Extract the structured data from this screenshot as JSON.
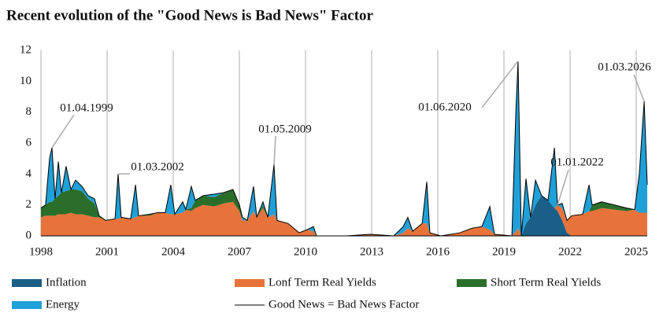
{
  "chart_data": {
    "type": "area",
    "title": "Recent evolution of the \"Good News is Bad News\" Factor",
    "x": [
      1998.0,
      1998.21,
      1998.39,
      1998.5,
      1998.64,
      1998.79,
      1998.93,
      1999.14,
      1999.36,
      1999.57,
      1999.86,
      2000.14,
      2000.43,
      2000.64,
      2000.93,
      2001.36,
      2001.5,
      2001.64,
      2002.07,
      2002.29,
      2002.43,
      2002.93,
      2003.29,
      2003.64,
      2003.89,
      2004.07,
      2004.43,
      2004.57,
      2004.82,
      2005.0,
      2005.36,
      2005.86,
      2006.29,
      2006.71,
      2007.0,
      2007.14,
      2007.36,
      2007.64,
      2007.79,
      2008.07,
      2008.29,
      2008.57,
      2008.71,
      2009.21,
      2009.71,
      2010.07,
      2010.36,
      2010.5,
      2011.86,
      2012.93,
      2014.0,
      2014.43,
      2014.64,
      2014.86,
      2015.29,
      2015.5,
      2015.64,
      2016.14,
      2017.0,
      2017.57,
      2018.0,
      2018.36,
      2018.57,
      2019.36,
      2019.54,
      2019.64,
      2019.79,
      2020.0,
      2020.21,
      2020.43,
      2020.71,
      2021.0,
      2021.29,
      2021.43,
      2021.64,
      2021.86,
      2022.07,
      2022.57,
      2022.86,
      2023.0,
      2023.43,
      2024.0,
      2024.57,
      2024.93,
      2025.14,
      2025.36,
      2025.5
    ],
    "series": [
      {
        "name": "Inflation",
        "color": "#1a5f87",
        "values": [
          0,
          0,
          0,
          0,
          0,
          0,
          0,
          0,
          0,
          0,
          0,
          0,
          0,
          0,
          0,
          0,
          0,
          0,
          0,
          0,
          0,
          0,
          0,
          0,
          0,
          0,
          0,
          0,
          0,
          0,
          0,
          0,
          0,
          0,
          0,
          0,
          0,
          0,
          0,
          0,
          0,
          0,
          0,
          0,
          0,
          0,
          0,
          0,
          0,
          0,
          0,
          0,
          0,
          0,
          0,
          0,
          0,
          0,
          0,
          0,
          0,
          0,
          0,
          0,
          0,
          0,
          0,
          0.8,
          1.2,
          2.0,
          2.6,
          2.3,
          1.8,
          1.6,
          1.0,
          0.2,
          0,
          0,
          0,
          0,
          0,
          0,
          0,
          0,
          0,
          0,
          0
        ]
      },
      {
        "name": "Lonf Term Real Yields",
        "color": "#e8733a",
        "values": [
          1.2,
          1.3,
          1.3,
          1.3,
          1.3,
          1.4,
          1.4,
          1.4,
          1.5,
          1.4,
          1.4,
          1.3,
          1.2,
          1.2,
          1.0,
          1.1,
          1.1,
          1.2,
          1.1,
          1.2,
          1.3,
          1.3,
          1.5,
          1.5,
          1.4,
          1.4,
          1.5,
          1.7,
          1.6,
          1.8,
          2.0,
          1.9,
          2.1,
          2.2,
          1.6,
          1.0,
          1.0,
          1.6,
          1.2,
          1.8,
          1.2,
          1.4,
          1.0,
          0.8,
          0.2,
          0.4,
          0.3,
          0,
          0,
          0.1,
          0,
          0.2,
          0.5,
          0.3,
          0.8,
          0.8,
          0.2,
          0,
          0.2,
          0.5,
          0.6,
          0.4,
          0.1,
          0,
          0.3,
          0.5,
          0,
          0,
          0,
          0,
          0,
          0,
          0,
          0.4,
          0.8,
          0.8,
          1.3,
          1.4,
          1.6,
          1.6,
          1.8,
          1.7,
          1.6,
          1.7,
          1.5,
          1.5,
          1.5
        ]
      },
      {
        "name": "Short Term Real Yields",
        "color": "#2a6e2a",
        "values": [
          0.6,
          0.7,
          0.9,
          0.9,
          1.1,
          1.2,
          1.4,
          1.5,
          1.5,
          1.6,
          1.5,
          1.1,
          0.9,
          0.1,
          0,
          0,
          0,
          0,
          0,
          0,
          0,
          0.1,
          0,
          0,
          0,
          0,
          0,
          0,
          0.2,
          0.5,
          0.6,
          0.6,
          0.7,
          0.8,
          0.4,
          0,
          0,
          0,
          0,
          0.2,
          0,
          0,
          0,
          0,
          0,
          0,
          0,
          0,
          0,
          0,
          0,
          0,
          0,
          0,
          0,
          0,
          0,
          0,
          0,
          0,
          0,
          0,
          0,
          0,
          0,
          0,
          0,
          0,
          0,
          0,
          0,
          0,
          0,
          0,
          0,
          0,
          0,
          0,
          0,
          0.4,
          0.4,
          0.3,
          0.2,
          0,
          0,
          0,
          0
        ]
      },
      {
        "name": "Energy",
        "color": "#1fa0d8",
        "values": [
          0,
          0,
          2.8,
          3.5,
          0,
          2.2,
          0,
          1.6,
          0,
          0.6,
          0.3,
          0.2,
          0.3,
          0,
          0,
          0,
          2.9,
          0,
          0,
          2.1,
          0,
          0,
          0,
          0,
          1.9,
          0,
          0.7,
          0,
          1.4,
          0,
          0,
          0.2,
          0,
          0,
          0,
          0.2,
          0,
          1.6,
          0,
          0.2,
          0,
          3.2,
          0,
          0,
          0,
          0,
          0.3,
          0,
          0,
          0,
          0,
          0.4,
          0.7,
          0,
          0,
          2.7,
          0,
          0,
          0,
          0,
          0,
          1.5,
          0,
          0,
          7.7,
          10.8,
          0,
          2.9,
          0,
          1.6,
          0,
          0,
          3.9,
          0,
          0.3,
          0,
          0,
          0,
          1.7,
          0,
          0,
          0,
          0,
          0,
          2.5,
          7.2,
          1.8
        ]
      },
      {
        "name": "Good News = Bad News Factor",
        "color": "#000000",
        "type": "line",
        "values": [
          1.8,
          2.0,
          5.0,
          5.7,
          2.4,
          4.8,
          2.8,
          4.5,
          3.0,
          3.6,
          3.2,
          2.6,
          2.4,
          1.3,
          1.0,
          1.1,
          4.0,
          1.2,
          1.1,
          3.3,
          1.3,
          1.4,
          1.5,
          1.5,
          3.3,
          1.4,
          2.2,
          1.7,
          3.2,
          2.3,
          2.6,
          2.7,
          2.8,
          3.0,
          2.0,
          1.2,
          1.0,
          3.2,
          1.2,
          2.2,
          1.2,
          4.6,
          1.0,
          0.8,
          0.2,
          0.4,
          0.6,
          0,
          0,
          0.1,
          0,
          0.6,
          1.2,
          0.3,
          0.8,
          3.5,
          0.2,
          0,
          0.2,
          0.5,
          0.6,
          1.9,
          0.1,
          0,
          8.0,
          11.3,
          0,
          3.7,
          1.2,
          3.6,
          2.6,
          2.3,
          5.7,
          2.0,
          2.1,
          1.0,
          1.3,
          1.4,
          3.3,
          2.0,
          2.2,
          2.0,
          1.8,
          1.7,
          4.0,
          8.7,
          3.3
        ]
      }
    ],
    "xlim": [
      1998,
      2025.5
    ],
    "xticks": [
      1998,
      2001,
      2004,
      2007,
      2010,
      2013,
      2016,
      2019,
      2022,
      2025
    ],
    "ylim": [
      0,
      12
    ],
    "yticks": [
      0,
      2,
      4,
      6,
      8,
      10,
      12
    ],
    "grid": true,
    "annotations": [
      {
        "text": "01.04.1999",
        "x": 1998.5
      },
      {
        "text": "01.03.2002",
        "x": 2001.5
      },
      {
        "text": "01.05.2009",
        "x": 2008.57
      },
      {
        "text": "01.06.2020",
        "x": 2019.64
      },
      {
        "text": "01.01.2022",
        "x": 2021.43
      },
      {
        "text": "01.03.2026",
        "x": 2025.36
      }
    ]
  }
}
